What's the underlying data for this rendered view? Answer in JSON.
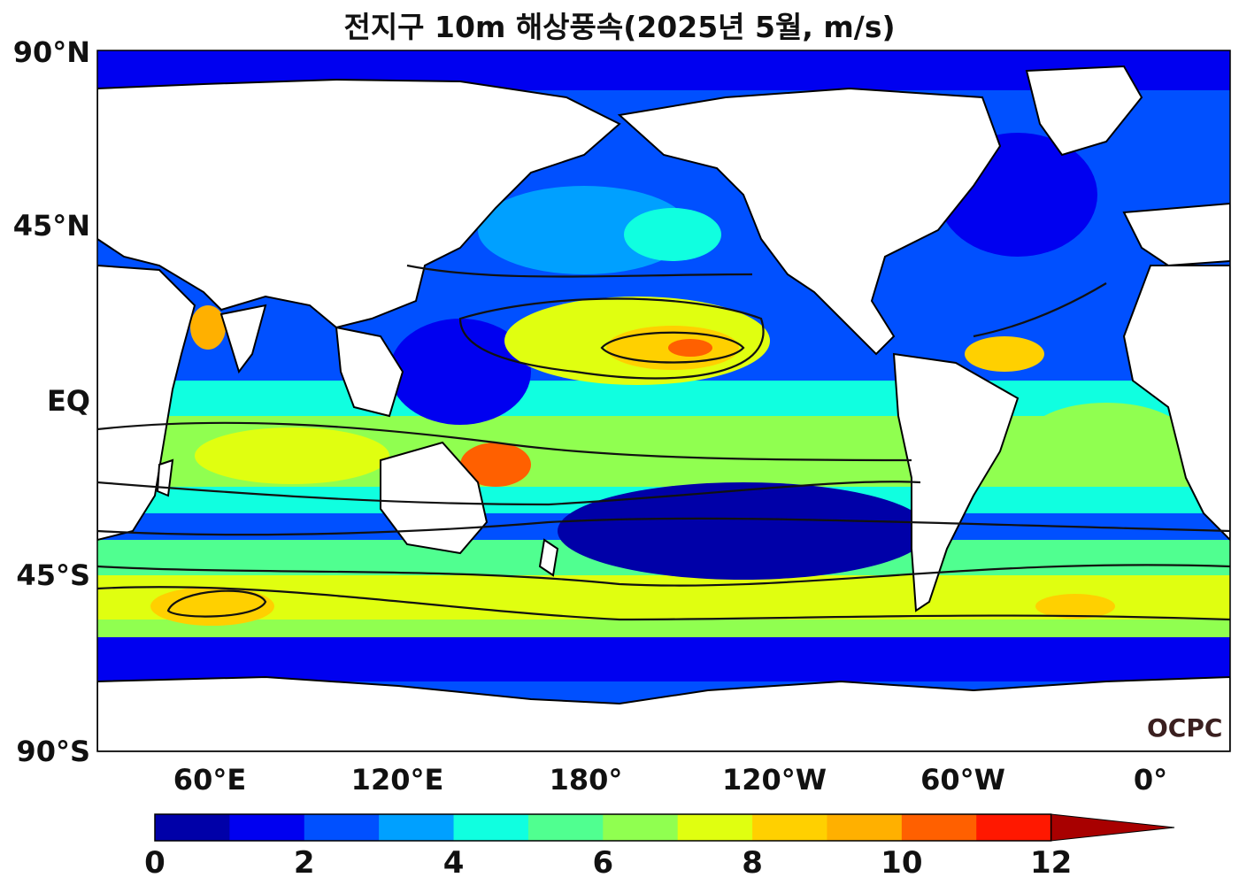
{
  "title": "전지구 10m 해상풍속(2025년 5월, m/s)",
  "logo_text": "OCPC",
  "y_axis_labels": [
    "90°N",
    "45°N",
    "EQ",
    "45°S",
    "90°S"
  ],
  "x_axis_labels": [
    "60°E",
    "120°E",
    "180°",
    "120°W",
    "60°W",
    "0°"
  ],
  "colorbar": {
    "tick_labels": [
      "0",
      "2",
      "4",
      "6",
      "8",
      "10",
      "12"
    ],
    "levels": [
      0,
      1,
      2,
      3,
      4,
      5,
      6,
      7,
      8,
      9,
      10,
      11,
      12
    ],
    "colors": [
      "#0000a8",
      "#0000f0",
      "#0050ff",
      "#00a0ff",
      "#10ffe0",
      "#50ff90",
      "#90ff50",
      "#e0ff10",
      "#ffd000",
      "#ffb000",
      "#ff6000",
      "#ff1800",
      "#a80000"
    ],
    "extend": "max"
  },
  "map_colors": {
    "land": "#ffffff",
    "coastline": "#000000",
    "contour": "#111111"
  }
}
